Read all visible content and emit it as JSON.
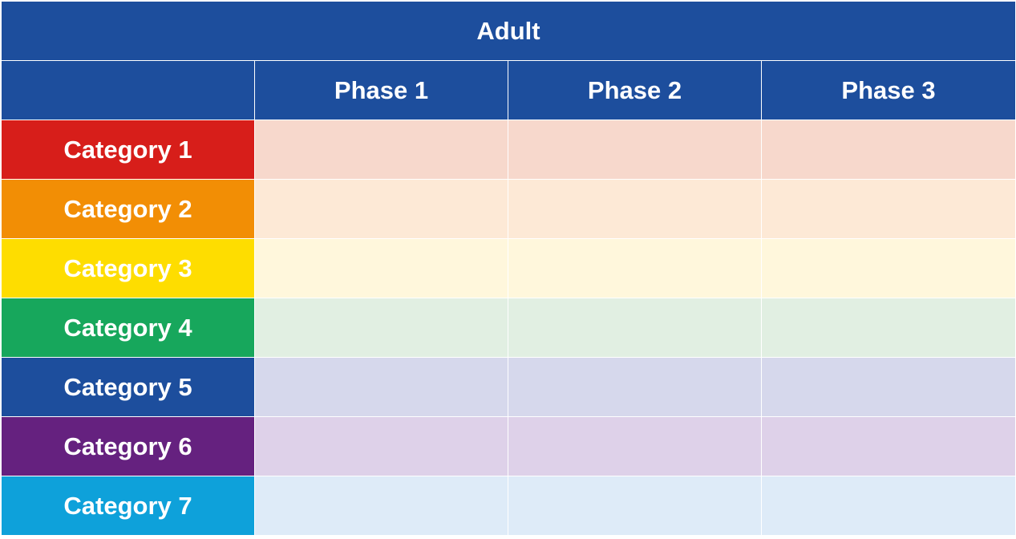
{
  "table": {
    "title": "Adult",
    "corner": "",
    "phases": [
      "Phase 1",
      "Phase 2",
      "Phase 3"
    ],
    "rows": [
      {
        "label": "Category 1",
        "color": "#d71e1a",
        "tint": "#f7d8cc",
        "cells": [
          "",
          "",
          ""
        ]
      },
      {
        "label": "Category 2",
        "color": "#f28e05",
        "tint": "#fde9d6",
        "cells": [
          "",
          "",
          ""
        ]
      },
      {
        "label": "Category 3",
        "color": "#fedd00",
        "tint": "#fff7dc",
        "cells": [
          "",
          "",
          ""
        ]
      },
      {
        "label": "Category 4",
        "color": "#17a75c",
        "tint": "#e1efe2",
        "cells": [
          "",
          "",
          ""
        ]
      },
      {
        "label": "Category 5",
        "color": "#1d4e9d",
        "tint": "#d6d8ec",
        "cells": [
          "",
          "",
          ""
        ]
      },
      {
        "label": "Category 6",
        "color": "#65217f",
        "tint": "#ded1e9",
        "cells": [
          "",
          "",
          ""
        ]
      },
      {
        "label": "Category 7",
        "color": "#0ea1da",
        "tint": "#deebf8",
        "cells": [
          "",
          "",
          ""
        ]
      }
    ],
    "header_color": "#1d4e9d"
  }
}
